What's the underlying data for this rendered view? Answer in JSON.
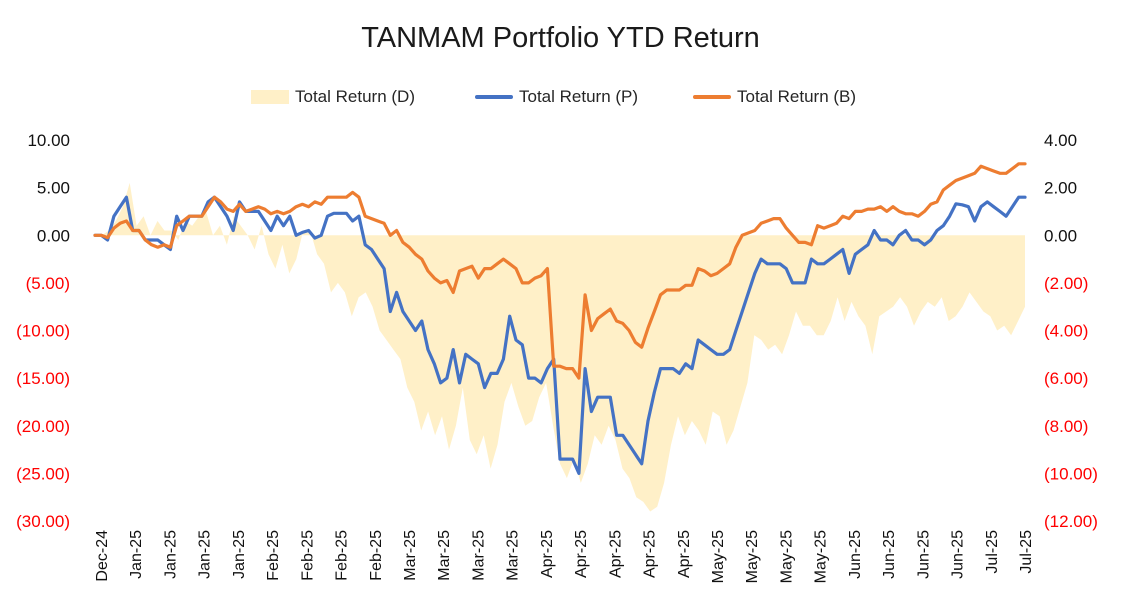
{
  "chart_data": {
    "type": "line",
    "title": "TANMAM Portfolio YTD Return",
    "legend": {
      "placement": "top",
      "items": [
        {
          "name": "Total Return (D)",
          "type": "area",
          "color": "#FFF0C8"
        },
        {
          "name": "Total Return (P)",
          "type": "line",
          "color": "#4472C4"
        },
        {
          "name": "Total Return (B)",
          "type": "line",
          "color": "#ED7D31"
        }
      ]
    },
    "x_tick_labels": [
      "Dec-24",
      "Jan-25",
      "Jan-25",
      "Jan-25",
      "Jan-25",
      "Feb-25",
      "Feb-25",
      "Feb-25",
      "Feb-25",
      "Mar-25",
      "Mar-25",
      "Mar-25",
      "Mar-25",
      "Apr-25",
      "Apr-25",
      "Apr-25",
      "Apr-25",
      "Apr-25",
      "May-25",
      "May-25",
      "May-25",
      "May-25",
      "Jun-25",
      "Jun-25",
      "Jun-25",
      "Jun-25",
      "Jul-25",
      "Jul-25"
    ],
    "y_left": {
      "ylim": [
        -30,
        10
      ],
      "ticks": [
        "10.00",
        "5.00",
        "0.00",
        "(5.00)",
        "(10.00)",
        "(15.00)",
        "(20.00)",
        "(25.00)",
        "(30.00)"
      ],
      "negative_color": "#FF0000"
    },
    "y_right": {
      "ylim": [
        -12,
        4
      ],
      "ticks": [
        "4.00",
        "2.00",
        "0.00",
        "(2.00)",
        "(4.00)",
        "(6.00)",
        "(8.00)",
        "(10.00)",
        "(12.00)"
      ],
      "negative_color": "#FF0000"
    },
    "grid": false,
    "series": [
      {
        "name": "Total Return (D)",
        "axis": "left",
        "values": [
          0,
          0,
          0.5,
          1.5,
          3.0,
          5.5,
          1.0,
          2.0,
          0,
          1.5,
          0.5,
          0.5,
          -0.5,
          1.5,
          1.0,
          2.0,
          2.5,
          0,
          1.0,
          -1.0,
          2.0,
          1.0,
          0,
          -1.5,
          1.0,
          -2.0,
          -3.5,
          -1.0,
          -4.0,
          -2.5,
          0.5,
          0.5,
          -2.0,
          -3.0,
          -6.0,
          -5.0,
          -6.0,
          -8.5,
          -6.5,
          -6.0,
          -7.5,
          -10.0,
          -11.0,
          -12.0,
          -13.0,
          -16.0,
          -17.5,
          -20.5,
          -18.5,
          -21.0,
          -19.0,
          -22.5,
          -20.0,
          -16.0,
          -21.5,
          -23.0,
          -21.0,
          -24.5,
          -22.0,
          -17.5,
          -15.5,
          -18.0,
          -20.0,
          -19.5,
          -17.0,
          -15.5,
          -20.0,
          -24.0,
          -25.5,
          -23.5,
          -26.0,
          -24.0,
          -21.0,
          -22.0,
          -20.0,
          -21.5,
          -24.5,
          -25.5,
          -27.5,
          -28.0,
          -29.0,
          -28.5,
          -26.0,
          -22.0,
          -19.0,
          -21.0,
          -19.5,
          -20.5,
          -22.0,
          -18.5,
          -19.0,
          -22.0,
          -20.5,
          -18.0,
          -15.5,
          -10.5,
          -11.0,
          -12.0,
          -11.5,
          -12.5,
          -10.5,
          -8.0,
          -9.5,
          -9.5,
          -10.5,
          -10.5,
          -9.0,
          -6.5,
          -9.0,
          -7.0,
          -8.5,
          -9.5,
          -12.5,
          -8.5,
          -8.0,
          -7.5,
          -6.5,
          -7.5,
          -9.5,
          -8.0,
          -7.0,
          -7.5,
          -6.5,
          -9.0,
          -8.5,
          -7.5,
          -6.0,
          -7.0,
          -8.0,
          -8.5,
          -10.0,
          -9.5,
          -10.5,
          -9.0,
          -7.5
        ]
      },
      {
        "name": "Total Return (P)",
        "axis": "left",
        "values": [
          0,
          0,
          -0.5,
          2.0,
          3.0,
          4.0,
          0.5,
          0.5,
          -0.5,
          -0.5,
          -0.5,
          -1.0,
          -1.5,
          2.0,
          0.5,
          2.0,
          2.0,
          2.0,
          3.5,
          4.0,
          3.0,
          2.0,
          0.5,
          3.5,
          2.5,
          2.5,
          2.5,
          1.5,
          0.5,
          2.0,
          1.0,
          2.0,
          0.0,
          0.3,
          0.5,
          -0.3,
          0,
          2.0,
          2.3,
          2.3,
          2.3,
          1.5,
          2.0,
          -1.0,
          -1.5,
          -2.5,
          -3.5,
          -8.0,
          -6.0,
          -8.0,
          -9.0,
          -10.0,
          -9.0,
          -12.0,
          -13.5,
          -15.5,
          -15.0,
          -12.0,
          -15.5,
          -12.5,
          -13.0,
          -13.5,
          -16.0,
          -14.5,
          -14.5,
          -13.0,
          -8.5,
          -11.0,
          -11.5,
          -15.0,
          -15.0,
          -15.5,
          -14.0,
          -13.0,
          -23.5,
          -23.5,
          -23.5,
          -25.0,
          -14.0,
          -18.5,
          -17.0,
          -17.0,
          -17.0,
          -21.0,
          -21.0,
          -22.0,
          -23.0,
          -24.0,
          -19.5,
          -16.5,
          -14.0,
          -14.0,
          -14.0,
          -14.5,
          -13.5,
          -14.0,
          -11.0,
          -11.5,
          -12.0,
          -12.5,
          -12.5,
          -12.0,
          -10.0,
          -8.0,
          -6.0,
          -4.0,
          -2.5,
          -3.0,
          -3.0,
          -3.0,
          -3.5,
          -5.0,
          -5.0,
          -5.0,
          -2.5,
          -3.0,
          -3.0,
          -2.5,
          -2.0,
          -1.5,
          -4.0,
          -2.0,
          -1.5,
          -1.0,
          0.5,
          -0.5,
          -0.5,
          -1.0,
          0,
          0.5,
          -0.5,
          -0.5,
          -1.0,
          -0.5,
          0.5,
          1.0,
          2.0,
          3.3,
          3.2,
          3.0,
          1.5,
          3.0,
          3.5,
          3.0,
          2.5,
          2.0,
          3.0,
          4.0,
          4.0
        ]
      },
      {
        "name": "Total Return (B)",
        "axis": "right",
        "values": [
          0,
          0,
          -0.1,
          0.3,
          0.5,
          0.6,
          0.2,
          0.2,
          -0.2,
          -0.4,
          -0.5,
          -0.4,
          -0.5,
          0.4,
          0.6,
          0.8,
          0.8,
          0.8,
          1.2,
          1.6,
          1.4,
          1.1,
          1.0,
          1.3,
          1.0,
          1.1,
          1.2,
          1.1,
          0.9,
          1.0,
          0.9,
          1.0,
          1.2,
          1.3,
          1.2,
          1.4,
          1.3,
          1.6,
          1.6,
          1.6,
          1.6,
          1.8,
          1.6,
          0.8,
          0.7,
          0.6,
          0.5,
          0,
          0.2,
          -0.3,
          -0.5,
          -0.8,
          -1.0,
          -1.5,
          -1.8,
          -2.0,
          -1.9,
          -2.4,
          -1.5,
          -1.4,
          -1.3,
          -1.8,
          -1.4,
          -1.4,
          -1.2,
          -1.0,
          -1.2,
          -1.4,
          -2.0,
          -2.0,
          -1.8,
          -1.7,
          -1.4,
          -5.5,
          -5.5,
          -5.6,
          -5.6,
          -6.0,
          -2.5,
          -4.0,
          -3.5,
          -3.3,
          -3.1,
          -3.6,
          -3.7,
          -4.0,
          -4.5,
          -4.7,
          -3.9,
          -3.2,
          -2.5,
          -2.3,
          -2.3,
          -2.3,
          -2.1,
          -2.1,
          -1.4,
          -1.5,
          -1.7,
          -1.6,
          -1.4,
          -1.2,
          -0.5,
          0,
          0.1,
          0.2,
          0.5,
          0.6,
          0.7,
          0.7,
          0.3,
          0,
          -0.3,
          -0.3,
          -0.4,
          0.4,
          0.3,
          0.4,
          0.5,
          0.8,
          0.7,
          1.0,
          1.0,
          1.1,
          1.1,
          1.2,
          1.0,
          1.2,
          1.0,
          0.9,
          0.9,
          0.8,
          1.0,
          1.3,
          1.4,
          1.9,
          2.1,
          2.3,
          2.4,
          2.5,
          2.6,
          2.9,
          2.8,
          2.7,
          2.6,
          2.6,
          2.8,
          3.0,
          3.0
        ]
      }
    ]
  }
}
